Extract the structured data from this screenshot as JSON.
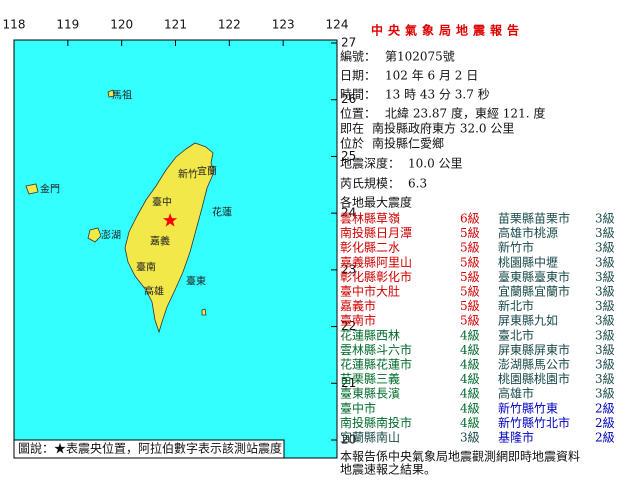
{
  "map": {
    "lon_range": [
      118,
      124
    ],
    "lat_range": [
      20,
      27
    ],
    "lon_ticks": [
      118,
      119,
      120,
      121,
      122,
      123,
      124
    ],
    "lat_ticks": [
      20,
      21,
      22,
      23,
      24,
      25,
      26,
      27
    ],
    "epicenter": {
      "lon": 120.9,
      "lat": 23.87,
      "color": "#ff0000"
    },
    "labels": [
      "馬祖",
      "金門",
      "澎湖",
      "新竹",
      "宜蘭",
      "臺中",
      "花蓮",
      "嘉義",
      "臺南",
      "高雄",
      "臺東"
    ],
    "legend": "圖說：★表震央位置，阿拉伯數字表示該測站震度"
  },
  "report": {
    "title": "中央氣象局地震報告",
    "lines": [
      {
        "label": "編號：",
        "value": "第102075號"
      },
      {
        "label": "日期：",
        "value": "102 年 6 月 2 日"
      },
      {
        "label": "時間：",
        "value": "13 時 43 分 3.7 秒"
      },
      {
        "label": "位置：",
        "value": "北緯 23.87 度，東經 121. 度"
      },
      {
        "label": "即在",
        "value": "南投縣政府東方 32.0 公里"
      },
      {
        "label": "位於",
        "value": "南投縣仁愛鄉"
      },
      {
        "label": "地震深度：",
        "value": "10.0 公里"
      },
      {
        "label": "芮氏規模：",
        "value": "6.3"
      }
    ],
    "intensity_heading": "各地最大震度",
    "left": [
      {
        "name": "雲林縣草嶺",
        "level": "6級",
        "color": "#d00000"
      },
      {
        "name": "南投縣日月潭",
        "level": "5級",
        "color": "#d00000"
      },
      {
        "name": "彰化縣二水",
        "level": "5級",
        "color": "#d00000"
      },
      {
        "name": "嘉義縣阿里山",
        "level": "5級",
        "color": "#d00000"
      },
      {
        "name": "彰化縣彰化市",
        "level": "5級",
        "color": "#d00000"
      },
      {
        "name": "臺中市大肚",
        "level": "5級",
        "color": "#d00000"
      },
      {
        "name": "嘉義市",
        "level": "5級",
        "color": "#d00000"
      },
      {
        "name": "臺南市",
        "level": "5級",
        "color": "#d00000"
      },
      {
        "name": "花蓮縣西林",
        "level": "4級",
        "color": "#006a2a"
      },
      {
        "name": "雲林縣斗六市",
        "level": "4級",
        "color": "#006a2a"
      },
      {
        "name": "花蓮縣花蓮市",
        "level": "4級",
        "color": "#006a2a"
      },
      {
        "name": "苗栗縣三義",
        "level": "4級",
        "color": "#006a2a"
      },
      {
        "name": "臺東縣長濱",
        "level": "4級",
        "color": "#006a2a"
      },
      {
        "name": "臺中市",
        "level": "4級",
        "color": "#006a2a"
      },
      {
        "name": "南投縣南投市",
        "level": "4級",
        "color": "#006a2a"
      },
      {
        "name": "宜蘭縣南山",
        "level": "3級",
        "color": "#1a4a4a"
      }
    ],
    "right": [
      {
        "name": "苗栗縣苗栗市",
        "level": "3級",
        "color": "#1a4a4a"
      },
      {
        "name": "高雄市桃源",
        "level": "3級",
        "color": "#1a4a4a"
      },
      {
        "name": "新竹市",
        "level": "3級",
        "color": "#1a4a4a"
      },
      {
        "name": "桃園縣中壢",
        "level": "3級",
        "color": "#1a4a4a"
      },
      {
        "name": "臺東縣臺東市",
        "level": "3級",
        "color": "#1a4a4a"
      },
      {
        "name": "宜蘭縣宜蘭市",
        "level": "3級",
        "color": "#1a4a4a"
      },
      {
        "name": "新北市",
        "level": "3級",
        "color": "#1a4a4a"
      },
      {
        "name": "屏東縣九如",
        "level": "3級",
        "color": "#1a4a4a"
      },
      {
        "name": "臺北市",
        "level": "3級",
        "color": "#1a4a4a"
      },
      {
        "name": "屏東縣屏東市",
        "level": "3級",
        "color": "#1a4a4a"
      },
      {
        "name": "澎湖縣馬公市",
        "level": "3級",
        "color": "#1a4a4a"
      },
      {
        "name": "桃園縣桃園市",
        "level": "3級",
        "color": "#1a4a4a"
      },
      {
        "name": "高雄市",
        "level": "3級",
        "color": "#1a4a4a"
      },
      {
        "name": "新竹縣竹東",
        "level": "2級",
        "color": "#0000c0"
      },
      {
        "name": "新竹縣竹北市",
        "level": "2級",
        "color": "#0000c0"
      },
      {
        "name": "基隆市",
        "level": "2級",
        "color": "#0000c0"
      }
    ],
    "footer": [
      "本報告係中央氣象局地震觀測網即時地震資料",
      "地震速報之結果。"
    ]
  }
}
